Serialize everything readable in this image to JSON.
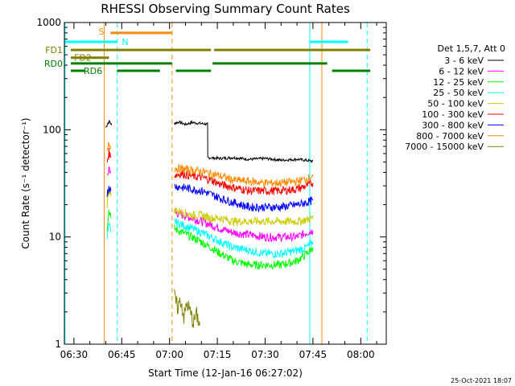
{
  "chart_data": {
    "type": "line",
    "title": "RHESSI Observing Summary Count Rates",
    "xlabel": "Start Time (12-Jan-16 06:27:02)",
    "ylabel": "Count Rate (s⁻¹ detector⁻¹)",
    "ylog": true,
    "ylim": [
      1,
      1000
    ],
    "xlim_minutes": [
      387,
      488
    ],
    "x_ticks": [
      {
        "label": "06:30",
        "min": 390
      },
      {
        "label": "06:45",
        "min": 405
      },
      {
        "label": "07:00",
        "min": 420
      },
      {
        "label": "07:15",
        "min": 435
      },
      {
        "label": "07:30",
        "min": 450
      },
      {
        "label": "07:45",
        "min": 465
      },
      {
        "label": "08:00",
        "min": 480
      }
    ],
    "y_ticks": [
      {
        "label": "1",
        "v": 1
      },
      {
        "label": "10",
        "v": 10
      },
      {
        "label": "100",
        "v": 100
      },
      {
        "label": "1000",
        "v": 1000
      }
    ],
    "legend_title": "Det 1,5,7, Att 0",
    "legend_position": "right",
    "series": [
      {
        "name": "3 - 6 keV",
        "color": "#000000",
        "segments": [
          {
            "x": [
              400.0,
              400.6,
              401.2,
              401.8
            ],
            "y": [
              105,
              115,
              120,
              110
            ]
          },
          {
            "x": [
              421.5,
              423,
              425,
              427,
              429,
              431.8,
              432,
              436,
              440,
              445,
              450,
              455,
              460,
              465
            ],
            "y": [
              115,
              118,
              112,
              117,
              115,
              113,
              55,
              54,
              55,
              53,
              54,
              52,
              53,
              51
            ]
          }
        ]
      },
      {
        "name": "6 - 12 keV",
        "color": "#ff00ff",
        "segments": [
          {
            "x": [
              400.4,
              401.0,
              401.6
            ],
            "y": [
              35,
              45,
              40
            ]
          },
          {
            "x": [
              421.5,
              424,
              427,
              430,
              433,
              436,
              440,
              445,
              450,
              455,
              460,
              463,
              465
            ],
            "y": [
              17,
              16,
              15,
              14,
              13,
              12,
              11,
              10.5,
              10,
              10,
              10,
              11,
              11.5
            ]
          }
        ]
      },
      {
        "name": "12 - 25 keV",
        "color": "#00ff00",
        "segments": [
          {
            "x": [
              400.4,
              401.0,
              401.6
            ],
            "y": [
              12,
              18,
              15
            ]
          },
          {
            "x": [
              421.5,
              424,
              427,
              430,
              433,
              436,
              440,
              445,
              450,
              455,
              460,
              463,
              465
            ],
            "y": [
              12,
              11,
              10,
              9,
              8,
              7,
              6,
              5.5,
              5.5,
              5.5,
              6,
              7,
              8
            ]
          }
        ]
      },
      {
        "name": "25 - 50 keV",
        "color": "#00ffff",
        "segments": [
          {
            "x": [
              400.4,
              401.0,
              401.6
            ],
            "y": [
              10,
              13,
              11
            ]
          },
          {
            "x": [
              421.5,
              424,
              427,
              430,
              433,
              436,
              440,
              445,
              450,
              455,
              460,
              463,
              465
            ],
            "y": [
              14,
              13,
              12,
              11,
              10,
              9,
              8,
              7.5,
              7,
              7,
              7.5,
              8,
              9
            ]
          }
        ]
      },
      {
        "name": "50 - 100 keV",
        "color": "#cccc00",
        "segments": [
          {
            "x": [
              400.4,
              401.0,
              401.6
            ],
            "y": [
              20,
              28,
              24
            ]
          },
          {
            "x": [
              421.5,
              424,
              427,
              430,
              433,
              436,
              440,
              445,
              450,
              455,
              460,
              463,
              465
            ],
            "y": [
              18,
              17,
              16,
              16,
              15,
              15,
              14,
              14,
              14,
              14,
              14,
              14.5,
              15
            ]
          }
        ]
      },
      {
        "name": "100 - 300 keV",
        "color": "#ff0000",
        "segments": [
          {
            "x": [
              400.4,
              401.0,
              401.6
            ],
            "y": [
              50,
              62,
              55
            ]
          },
          {
            "x": [
              421.5,
              424,
              427,
              430,
              433,
              436,
              440,
              445,
              450,
              455,
              460,
              463,
              465
            ],
            "y": [
              38,
              39,
              37,
              36,
              34,
              31,
              29,
              27,
              27,
              27,
              28,
              30,
              32
            ]
          }
        ]
      },
      {
        "name": "300 - 800 keV",
        "color": "#0000ff",
        "segments": [
          {
            "x": [
              400.4,
              401.0,
              401.6
            ],
            "y": [
              25,
              30,
              27
            ]
          },
          {
            "x": [
              421.5,
              424,
              427,
              430,
              433,
              436,
              440,
              445,
              450,
              455,
              460,
              463,
              465
            ],
            "y": [
              30,
              29,
              28,
              27,
              25,
              23,
              21,
              19,
              19,
              19,
              20,
              21,
              22
            ]
          }
        ]
      },
      {
        "name": "800 - 7000 keV",
        "color": "#ff8c00",
        "segments": [
          {
            "x": [
              400.4,
              401.0,
              401.6
            ],
            "y": [
              60,
              75,
              68
            ]
          },
          {
            "x": [
              421.5,
              424,
              427,
              430,
              433,
              436,
              440,
              445,
              450,
              455,
              460,
              463,
              465
            ],
            "y": [
              44,
              43,
              42,
              41,
              39,
              37,
              34,
              33,
              32,
              32,
              33,
              35,
              37
            ]
          }
        ]
      },
      {
        "name": "7000 - 15000 keV",
        "color": "#808000",
        "segments": [
          {
            "x": [
              421.5,
              422.5,
              423.5,
              424.5,
              425.5,
              426.5,
              427.5,
              428.5,
              429.5
            ],
            "y": [
              2.8,
              2.2,
              2.6,
              1.8,
              2.4,
              2.0,
              1.6,
              1.9,
              1.5
            ]
          }
        ]
      }
    ],
    "state_bars": [
      {
        "label": "S",
        "color": "#ff8c00",
        "y": 800,
        "ranges": [
          [
            401.5,
            420.8
          ]
        ]
      },
      {
        "label": "N",
        "color": "#00ffff",
        "y": 660,
        "ranges": [
          [
            387,
            403.5
          ],
          [
            464,
            476
          ]
        ]
      },
      {
        "label": "FD1",
        "color": "#808000",
        "y": 555,
        "ranges": [
          [
            389,
            433
          ],
          [
            434,
            483
          ]
        ]
      },
      {
        "label": "FD2",
        "color": "#808000",
        "y": 470,
        "ranges": [
          [
            389,
            401
          ]
        ]
      },
      {
        "label": "RD0",
        "color": "#008000",
        "y": 415,
        "ranges": [
          [
            389,
            420.8
          ],
          [
            433.5,
            469.5
          ]
        ]
      },
      {
        "label": "RD6",
        "color": "#008000",
        "y": 355,
        "ranges": [
          [
            389,
            393.5
          ],
          [
            403.5,
            417
          ],
          [
            422,
            433
          ],
          [
            471,
            483
          ]
        ]
      }
    ],
    "vlines": [
      {
        "min": 387.2,
        "color": "#00ffff",
        "style": "solid"
      },
      {
        "min": 399.5,
        "color": "#ff8c00",
        "style": "solid"
      },
      {
        "min": 403.6,
        "color": "#00ffff",
        "style": "dashed"
      },
      {
        "min": 420.8,
        "color": "#ff8c00",
        "style": "dashed"
      },
      {
        "min": 464.0,
        "color": "#00ffff",
        "style": "solid"
      },
      {
        "min": 467.8,
        "color": "#ff8c00",
        "style": "solid"
      },
      {
        "min": 482.0,
        "color": "#00ffff",
        "style": "dashed"
      }
    ],
    "footer_timestamp": "25-Oct-2021 18:07"
  }
}
